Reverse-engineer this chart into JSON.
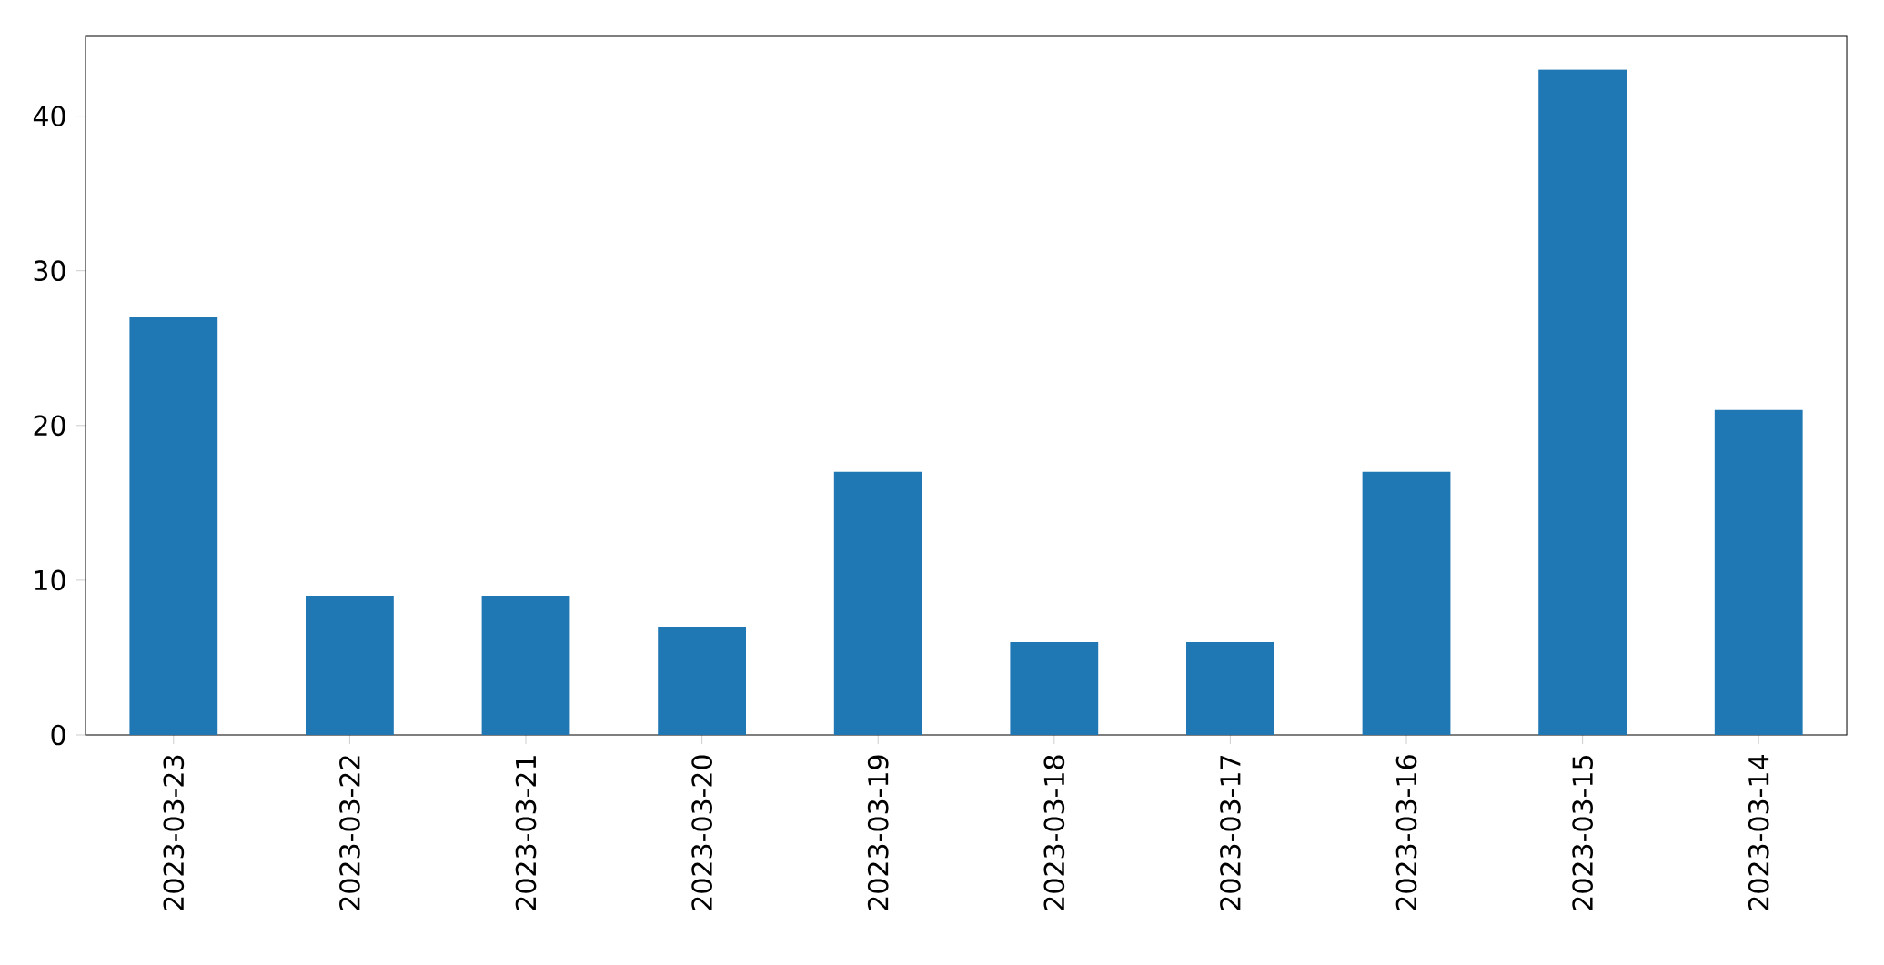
{
  "chart_data": {
    "type": "bar",
    "categories": [
      "2023-03-23",
      "2023-03-22",
      "2023-03-21",
      "2023-03-20",
      "2023-03-19",
      "2023-03-18",
      "2023-03-17",
      "2023-03-16",
      "2023-03-15",
      "2023-03-14"
    ],
    "values": [
      27,
      9,
      9,
      7,
      17,
      6,
      6,
      17,
      43,
      21
    ],
    "color": "#1f77b4",
    "ylim": [
      0,
      45.15
    ],
    "yticks": [
      0,
      10,
      20,
      30,
      40
    ]
  }
}
